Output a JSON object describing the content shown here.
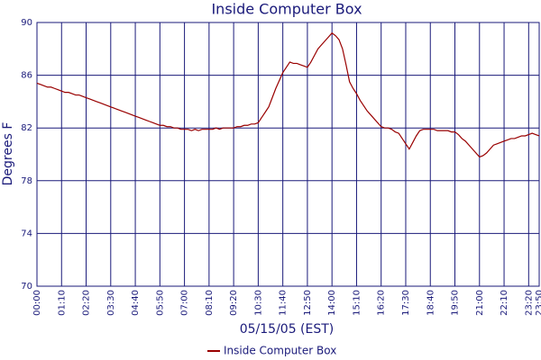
{
  "chart_data": {
    "type": "line",
    "title": "Inside Computer Box",
    "x_label": "05/15/05 (EST)",
    "y_label": "Degrees F",
    "x": [
      "00:00",
      "00:10",
      "00:20",
      "00:30",
      "00:40",
      "00:50",
      "01:00",
      "01:10",
      "01:20",
      "01:30",
      "01:40",
      "01:50",
      "02:00",
      "02:10",
      "02:20",
      "02:30",
      "02:40",
      "02:50",
      "03:00",
      "03:10",
      "03:20",
      "03:30",
      "03:40",
      "03:50",
      "04:00",
      "04:10",
      "04:20",
      "04:30",
      "04:40",
      "04:50",
      "05:00",
      "05:10",
      "05:20",
      "05:30",
      "05:40",
      "05:50",
      "06:00",
      "06:10",
      "06:20",
      "06:30",
      "06:40",
      "06:50",
      "07:00",
      "07:10",
      "07:20",
      "07:30",
      "07:40",
      "07:50",
      "08:00",
      "08:10",
      "08:20",
      "08:30",
      "08:40",
      "08:50",
      "09:00",
      "09:10",
      "09:20",
      "09:30",
      "09:40",
      "09:50",
      "10:00",
      "10:10",
      "10:20",
      "10:30",
      "10:40",
      "10:50",
      "11:00",
      "11:10",
      "11:20",
      "11:30",
      "11:40",
      "11:50",
      "12:00",
      "12:10",
      "12:20",
      "12:30",
      "12:40",
      "12:50",
      "13:00",
      "13:10",
      "13:20",
      "13:30",
      "13:40",
      "13:50",
      "14:00",
      "14:10",
      "14:20",
      "14:30",
      "14:40",
      "14:50",
      "15:00",
      "15:10",
      "15:20",
      "15:30",
      "15:40",
      "15:50",
      "16:00",
      "16:10",
      "16:20",
      "16:30",
      "16:40",
      "16:50",
      "17:00",
      "17:10",
      "17:20",
      "17:30",
      "17:40",
      "17:50",
      "18:00",
      "18:10",
      "18:20",
      "18:30",
      "18:40",
      "18:50",
      "19:00",
      "19:10",
      "19:20",
      "19:30",
      "19:40",
      "19:50",
      "20:00",
      "20:10",
      "20:20",
      "20:30",
      "20:40",
      "20:50",
      "21:00",
      "21:10",
      "21:20",
      "21:30",
      "21:40",
      "21:50",
      "22:00",
      "22:10",
      "22:20",
      "22:30",
      "22:40",
      "22:50",
      "23:00",
      "23:10",
      "23:20",
      "23:30",
      "23:40",
      "23:50"
    ],
    "series": [
      {
        "name": "Inside Computer Box",
        "color": "#990000",
        "values": [
          85.4,
          85.3,
          85.2,
          85.1,
          85.1,
          85.0,
          84.9,
          84.8,
          84.7,
          84.7,
          84.6,
          84.5,
          84.5,
          84.4,
          84.3,
          84.2,
          84.1,
          84.0,
          83.9,
          83.8,
          83.7,
          83.6,
          83.5,
          83.4,
          83.3,
          83.2,
          83.1,
          83.0,
          82.9,
          82.8,
          82.7,
          82.6,
          82.5,
          82.4,
          82.3,
          82.2,
          82.2,
          82.1,
          82.1,
          82.0,
          82.0,
          81.9,
          81.9,
          81.9,
          81.8,
          81.9,
          81.8,
          81.9,
          81.9,
          81.9,
          81.9,
          82.0,
          81.9,
          82.0,
          82.0,
          82.0,
          82.0,
          82.1,
          82.1,
          82.2,
          82.2,
          82.3,
          82.3,
          82.4,
          82.8,
          83.2,
          83.6,
          84.3,
          85.0,
          85.6,
          86.2,
          86.6,
          87.0,
          86.9,
          86.9,
          86.8,
          86.7,
          86.6,
          87.0,
          87.5,
          88.0,
          88.3,
          88.6,
          88.9,
          89.2,
          89.0,
          88.7,
          88.0,
          86.8,
          85.5,
          85.0,
          84.6,
          84.1,
          83.7,
          83.3,
          83.0,
          82.7,
          82.4,
          82.1,
          82.0,
          82.0,
          81.9,
          81.7,
          81.6,
          81.2,
          80.8,
          80.4,
          80.9,
          81.4,
          81.8,
          81.9,
          81.9,
          81.9,
          81.9,
          81.8,
          81.8,
          81.8,
          81.8,
          81.7,
          81.7,
          81.5,
          81.2,
          81.0,
          80.7,
          80.4,
          80.1,
          79.8,
          79.9,
          80.1,
          80.4,
          80.7,
          80.8,
          80.9,
          81.0,
          81.1,
          81.2,
          81.2,
          81.3,
          81.4,
          81.4,
          81.5,
          81.6,
          81.5,
          81.4
        ]
      }
    ],
    "ylim": [
      70,
      90
    ],
    "yticks": [
      70,
      74,
      78,
      82,
      86,
      90
    ],
    "grid": true
  }
}
